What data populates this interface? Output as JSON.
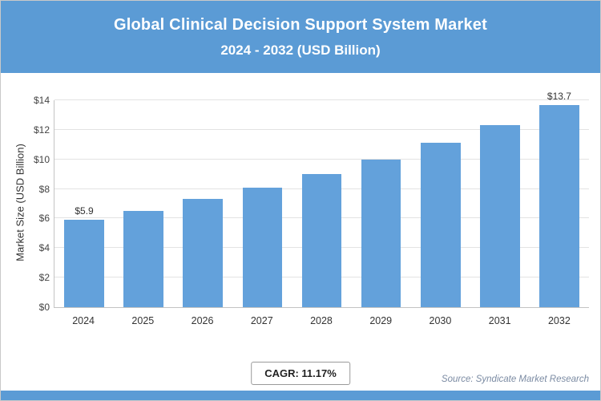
{
  "header": {
    "title_line1": "Global Clinical Decision Support System Market",
    "title_line2": "2024 - 2032 (USD Billion)"
  },
  "chart_data": {
    "type": "bar",
    "title": "Global Clinical Decision Support System Market 2024 - 2032 (USD Billion)",
    "categories": [
      "2024",
      "2025",
      "2026",
      "2027",
      "2028",
      "2029",
      "2030",
      "2031",
      "2032"
    ],
    "values": [
      5.9,
      6.5,
      7.3,
      8.1,
      9.0,
      10.0,
      11.1,
      12.3,
      13.7
    ],
    "value_labels": [
      "$5.9",
      "",
      "",
      "",
      "",
      "",
      "",
      "",
      "$13.7"
    ],
    "xlabel": "",
    "ylabel": "Market Size (USD Billion)",
    "ylim": [
      0,
      14
    ],
    "ytick_step": 2,
    "ytick_labels": [
      "$0",
      "$2",
      "$4",
      "$6",
      "$8",
      "$10",
      "$12",
      "$14"
    ],
    "bar_color": "#63A1DB",
    "grid": true,
    "legend": "none"
  },
  "footer": {
    "cagr_label": "CAGR: 11.17%",
    "source": "Source: Syndicate Market Research"
  },
  "colors": {
    "header_bg": "#5B9BD5",
    "bar": "#63A1DB",
    "gridline": "#e3e3e3",
    "source_text": "#7b8ba3"
  }
}
